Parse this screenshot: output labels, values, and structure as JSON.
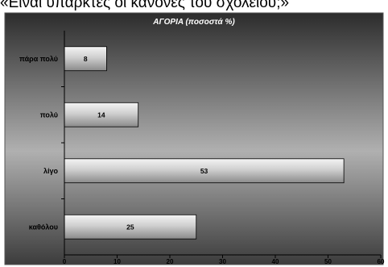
{
  "header": {
    "caption": "«Είναι υπαρκτές οι κανόνες του σχολείου;»"
  },
  "colors": {
    "plot_gradient_top": "#2c2c2c",
    "plot_gradient_mid": "#b0b0b0",
    "plot_gradient_bottom": "#3c3c3c",
    "bar_light": "#f4f4f4",
    "bar_mid": "#cfcfcf",
    "bar_dark": "#8a8a8a"
  },
  "chart_data": {
    "type": "bar",
    "orientation": "horizontal",
    "title": "ΑΓΟΡΙΑ (ποσοστά %)",
    "categories": [
      "πάρα πολύ",
      "πολύ",
      "λίγο",
      "καθόλου"
    ],
    "values": [
      8,
      14,
      53,
      25
    ],
    "xlim": [
      0,
      60
    ],
    "xticks": [
      0,
      10,
      20,
      30,
      40,
      50,
      60
    ],
    "xlabel": "",
    "ylabel": "",
    "grid": false,
    "legend": "none"
  }
}
